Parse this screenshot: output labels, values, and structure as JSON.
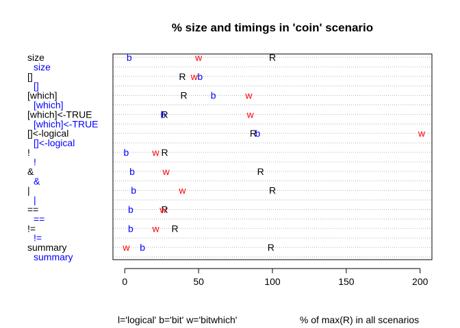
{
  "chart_data": {
    "type": "scatter",
    "title": "% size and timings in 'coin' scenario",
    "footer_legend": "l='logical'  b='bit'  w='bitwhich'",
    "xlabel": "% of max(R) in all scenarios",
    "xlim": [
      -8,
      208
    ],
    "x_ticks": [
      0,
      50,
      100,
      150,
      200
    ],
    "grid": "horizontal dotted lines",
    "colors": {
      "R": "#000000",
      "b": "#0000ff",
      "w": "#ff0000"
    },
    "categories": [
      {
        "label": "size",
        "color": "#000000",
        "indent": false
      },
      {
        "label": "size",
        "color": "#0000ff",
        "indent": true
      },
      {
        "label": "[]",
        "color": "#000000",
        "indent": false
      },
      {
        "label": "[]",
        "color": "#0000ff",
        "indent": true
      },
      {
        "label": "[which]",
        "color": "#000000",
        "indent": false
      },
      {
        "label": "[which]",
        "color": "#0000ff",
        "indent": true
      },
      {
        "label": "[which]<-TRUE",
        "color": "#000000",
        "indent": false
      },
      {
        "label": "[which]<-TRUE",
        "color": "#0000ff",
        "indent": true
      },
      {
        "label": "[]<-logical",
        "color": "#000000",
        "indent": false
      },
      {
        "label": "[]<-logical",
        "color": "#0000ff",
        "indent": true
      },
      {
        "label": "!",
        "color": "#000000",
        "indent": false
      },
      {
        "label": "!",
        "color": "#0000ff",
        "indent": true
      },
      {
        "label": "&",
        "color": "#000000",
        "indent": false
      },
      {
        "label": "&",
        "color": "#0000ff",
        "indent": true
      },
      {
        "label": "|",
        "color": "#000000",
        "indent": false
      },
      {
        "label": "|",
        "color": "#0000ff",
        "indent": true
      },
      {
        "label": "==",
        "color": "#000000",
        "indent": false
      },
      {
        "label": "==",
        "color": "#0000ff",
        "indent": true
      },
      {
        "label": "!=",
        "color": "#000000",
        "indent": false
      },
      {
        "label": "!=",
        "color": "#0000ff",
        "indent": true
      },
      {
        "label": "summary",
        "color": "#000000",
        "indent": false
      },
      {
        "label": "summary",
        "color": "#0000ff",
        "indent": true
      }
    ],
    "series": [
      {
        "name": "R",
        "values": [
          100,
          39,
          40,
          27,
          87,
          27,
          92,
          100,
          27,
          34,
          99
        ]
      },
      {
        "name": "b",
        "values": [
          3,
          51,
          60,
          26,
          90,
          1,
          5,
          6,
          4,
          4,
          12
        ]
      },
      {
        "name": "w",
        "values": [
          50,
          47,
          84,
          85,
          201,
          21,
          28,
          39,
          26,
          21,
          1
        ]
      }
    ]
  }
}
